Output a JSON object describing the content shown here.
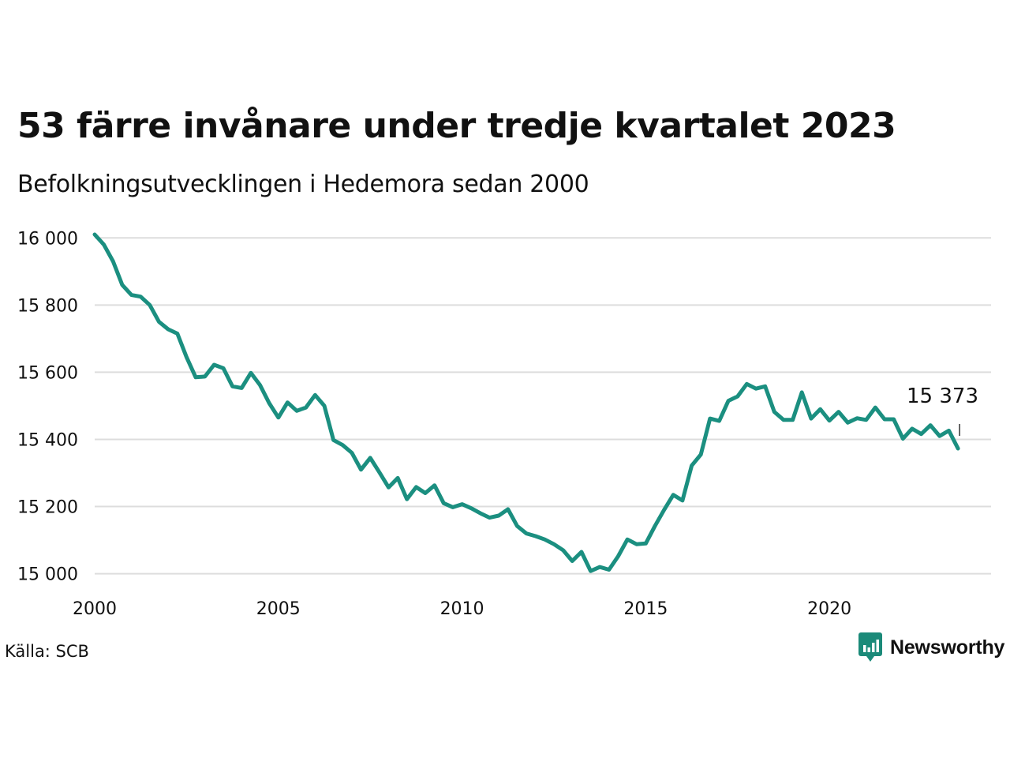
{
  "header": {
    "title": "53 färre invånare under tredje kvartalet 2023",
    "subtitle": "Befolkningsutvecklingen i Hedemora sedan 2000"
  },
  "footer": {
    "source": "Källa: SCB",
    "brand": "Newsworthy",
    "brand_icon": "newsworthy-logo-icon",
    "brand_color": "#1b8a79"
  },
  "chart_data": {
    "type": "line",
    "title": "53 färre invånare under tredje kvartalet 2023",
    "subtitle": "Befolkningsutvecklingen i Hedemora sedan 2000",
    "xlabel": "",
    "ylabel": "",
    "x_ticks": [
      2000,
      2005,
      2010,
      2015,
      2020
    ],
    "x_tick_labels": [
      "2000",
      "2005",
      "2010",
      "2015",
      "2020"
    ],
    "y_ticks": [
      15000,
      15200,
      15400,
      15600,
      15800,
      16000
    ],
    "y_tick_labels": [
      "15 000",
      "15 200",
      "15 400",
      "15 600",
      "15 800",
      "16 000"
    ],
    "xlim": [
      2000,
      2024.4
    ],
    "ylim": [
      14985,
      16010
    ],
    "grid": "horizontal",
    "line_color": "#1b8f80",
    "grid_color": "#dddddd",
    "annotation": {
      "label": "15 373",
      "x": 2023.5,
      "value": 15373
    },
    "series": [
      {
        "x": [
          2000.0,
          2000.25,
          2000.5,
          2000.75,
          2001.0,
          2001.25,
          2001.5,
          2001.75,
          2002.0,
          2002.25,
          2002.5,
          2002.75,
          2003.0,
          2003.25,
          2003.5,
          2003.75,
          2004.0,
          2004.25,
          2004.5,
          2004.75,
          2005.0,
          2005.25,
          2005.5,
          2005.75,
          2006.0,
          2006.25,
          2006.5,
          2006.75,
          2007.0,
          2007.25,
          2007.5,
          2007.75,
          2008.0,
          2008.25,
          2008.5,
          2008.75,
          2009.0,
          2009.25,
          2009.5,
          2009.75,
          2010.0,
          2010.25,
          2010.5,
          2010.75,
          2011.0,
          2011.25,
          2011.5,
          2011.75,
          2012.0,
          2012.25,
          2012.5,
          2012.75,
          2013.0,
          2013.25,
          2013.5,
          2013.75,
          2014.0,
          2014.25,
          2014.5,
          2014.75,
          2015.0,
          2015.25,
          2015.5,
          2015.75,
          2016.0,
          2016.25,
          2016.5,
          2016.75,
          2017.0,
          2017.25,
          2017.5,
          2017.75,
          2018.0,
          2018.25,
          2018.5,
          2018.75,
          2019.0,
          2019.25,
          2019.5,
          2019.75,
          2020.0,
          2020.25,
          2020.5,
          2020.75,
          2021.0,
          2021.25,
          2021.5,
          2021.75,
          2022.0,
          2022.25,
          2022.5,
          2022.75,
          2023.0,
          2023.25,
          2023.5
        ],
        "values": [
          16010,
          15980,
          15930,
          15860,
          15830,
          15825,
          15800,
          15750,
          15728,
          15715,
          15645,
          15585,
          15587,
          15622,
          15612,
          15558,
          15553,
          15598,
          15562,
          15508,
          15465,
          15510,
          15485,
          15495,
          15532,
          15500,
          15398,
          15383,
          15360,
          15310,
          15345,
          15302,
          15257,
          15285,
          15222,
          15258,
          15240,
          15263,
          15210,
          15198,
          15207,
          15195,
          15180,
          15167,
          15173,
          15192,
          15142,
          15120,
          15112,
          15102,
          15088,
          15070,
          15038,
          15065,
          15008,
          15020,
          15012,
          15052,
          15102,
          15088,
          15090,
          15142,
          15190,
          15235,
          15218,
          15322,
          15355,
          15462,
          15455,
          15515,
          15528,
          15565,
          15551,
          15558,
          15482,
          15458,
          15458,
          15540,
          15462,
          15490,
          15456,
          15482,
          15450,
          15463,
          15458,
          15495,
          15460,
          15460,
          15402,
          15432,
          15416,
          15442,
          15410,
          15426,
          15373
        ]
      }
    ]
  }
}
